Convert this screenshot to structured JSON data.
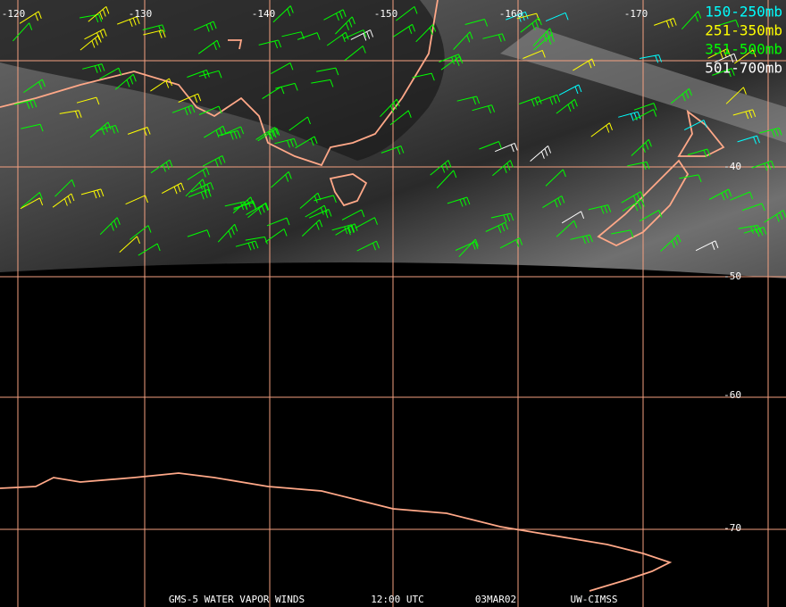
{
  "longitude_labels": [
    "-120",
    "-130",
    "-140",
    "-150",
    "-160",
    "-170"
  ],
  "latitude_labels": [
    "-40",
    "-50",
    "-60",
    "-70"
  ],
  "legend": [
    {
      "label": "150-250mb",
      "color": "#00ffff"
    },
    {
      "label": "251-350mb",
      "color": "#ffff00"
    },
    {
      "label": "351-500mb",
      "color": "#00ff00"
    },
    {
      "label": "501-700mb",
      "color": "#ffffff"
    }
  ],
  "footer": [
    "GMS-5 WATER VAPOR WINDS",
    "12:00 UTC",
    "03MAR02",
    "UW-CIMSS"
  ]
}
